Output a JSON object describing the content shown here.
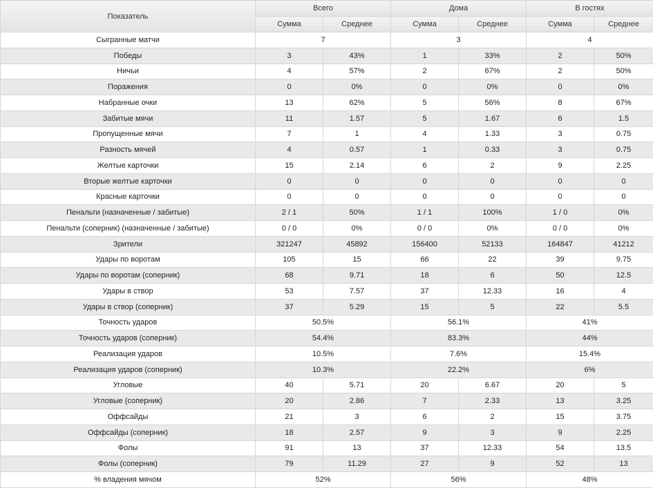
{
  "header": {
    "label_col": "Показатель",
    "groups": [
      "Всего",
      "Дома",
      "В гостях"
    ],
    "sub": [
      "Сумма",
      "Среднее"
    ]
  },
  "rows": [
    {
      "label": "Сыгранные матчи",
      "merged": true,
      "vals": [
        "7",
        "3",
        "4"
      ]
    },
    {
      "label": "Победы",
      "merged": false,
      "vals": [
        "3",
        "43%",
        "1",
        "33%",
        "2",
        "50%"
      ]
    },
    {
      "label": "Ничьи",
      "merged": false,
      "vals": [
        "4",
        "57%",
        "2",
        "67%",
        "2",
        "50%"
      ]
    },
    {
      "label": "Поражения",
      "merged": false,
      "vals": [
        "0",
        "0%",
        "0",
        "0%",
        "0",
        "0%"
      ]
    },
    {
      "label": "Набранные очки",
      "merged": false,
      "vals": [
        "13",
        "62%",
        "5",
        "56%",
        "8",
        "67%"
      ]
    },
    {
      "label": "Забитые мячи",
      "merged": false,
      "vals": [
        "11",
        "1.57",
        "5",
        "1.67",
        "6",
        "1.5"
      ]
    },
    {
      "label": "Пропущенные мячи",
      "merged": false,
      "vals": [
        "7",
        "1",
        "4",
        "1.33",
        "3",
        "0.75"
      ]
    },
    {
      "label": "Разность мячей",
      "merged": false,
      "vals": [
        "4",
        "0.57",
        "1",
        "0.33",
        "3",
        "0.75"
      ]
    },
    {
      "label": "Желтые карточки",
      "merged": false,
      "vals": [
        "15",
        "2.14",
        "6",
        "2",
        "9",
        "2.25"
      ]
    },
    {
      "label": "Вторые желтые карточки",
      "merged": false,
      "vals": [
        "0",
        "0",
        "0",
        "0",
        "0",
        "0"
      ]
    },
    {
      "label": "Красные карточки",
      "merged": false,
      "vals": [
        "0",
        "0",
        "0",
        "0",
        "0",
        "0"
      ]
    },
    {
      "label": "Пенальти (назначенные / забитые)",
      "merged": false,
      "vals": [
        "2 / 1",
        "50%",
        "1 / 1",
        "100%",
        "1 / 0",
        "0%"
      ]
    },
    {
      "label": "Пенальти (соперник) (назначенные / забитые)",
      "merged": false,
      "vals": [
        "0 / 0",
        "0%",
        "0 / 0",
        "0%",
        "0 / 0",
        "0%"
      ]
    },
    {
      "label": "Зрители",
      "merged": false,
      "vals": [
        "321247",
        "45892",
        "156400",
        "52133",
        "164847",
        "41212"
      ]
    },
    {
      "label": "Удары по воротам",
      "merged": false,
      "vals": [
        "105",
        "15",
        "66",
        "22",
        "39",
        "9.75"
      ]
    },
    {
      "label": "Удары по воротам (соперник)",
      "merged": false,
      "vals": [
        "68",
        "9.71",
        "18",
        "6",
        "50",
        "12.5"
      ]
    },
    {
      "label": "Удары в створ",
      "merged": false,
      "vals": [
        "53",
        "7.57",
        "37",
        "12.33",
        "16",
        "4"
      ]
    },
    {
      "label": "Удары в створ (соперник)",
      "merged": false,
      "vals": [
        "37",
        "5.29",
        "15",
        "5",
        "22",
        "5.5"
      ]
    },
    {
      "label": "Точность ударов",
      "merged": true,
      "vals": [
        "50.5%",
        "56.1%",
        "41%"
      ]
    },
    {
      "label": "Точность ударов (соперник)",
      "merged": true,
      "vals": [
        "54.4%",
        "83.3%",
        "44%"
      ]
    },
    {
      "label": "Реализация ударов",
      "merged": true,
      "vals": [
        "10.5%",
        "7.6%",
        "15.4%"
      ]
    },
    {
      "label": "Реализация ударов (соперник)",
      "merged": true,
      "vals": [
        "10.3%",
        "22.2%",
        "6%"
      ]
    },
    {
      "label": "Угловые",
      "merged": false,
      "vals": [
        "40",
        "5.71",
        "20",
        "6.67",
        "20",
        "5"
      ]
    },
    {
      "label": "Угловые (соперник)",
      "merged": false,
      "vals": [
        "20",
        "2.86",
        "7",
        "2.33",
        "13",
        "3.25"
      ]
    },
    {
      "label": "Оффсайды",
      "merged": false,
      "vals": [
        "21",
        "3",
        "6",
        "2",
        "15",
        "3.75"
      ]
    },
    {
      "label": "Оффсайды (соперник)",
      "merged": false,
      "vals": [
        "18",
        "2.57",
        "9",
        "3",
        "9",
        "2.25"
      ]
    },
    {
      "label": "Фолы",
      "merged": false,
      "vals": [
        "91",
        "13",
        "37",
        "12.33",
        "54",
        "13.5"
      ]
    },
    {
      "label": "Фолы (соперник)",
      "merged": false,
      "vals": [
        "79",
        "11.29",
        "27",
        "9",
        "52",
        "13"
      ]
    },
    {
      "label": "% владения мячом",
      "merged": true,
      "vals": [
        "52%",
        "56%",
        "48%"
      ]
    }
  ]
}
